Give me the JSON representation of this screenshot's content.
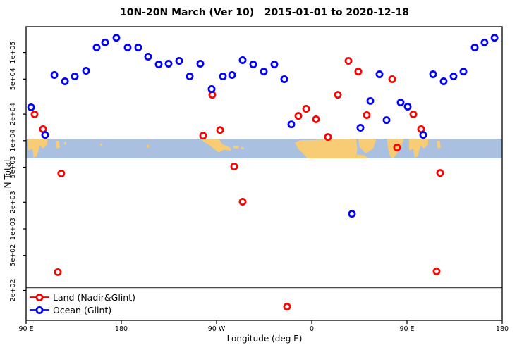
{
  "chart_data": {
    "type": "scatter",
    "title": "10N-20N March (Ver 10)   2015-01-01 to 2020-12-18",
    "xlabel": "Longitude (deg E)",
    "ylabel": "N Total",
    "yscale": "log",
    "ylim": [
      130,
      200000
    ],
    "x_axis_wrap_note": "x axis spans 450 deg starting at 90E: 90E,180,90W,0,90E,180",
    "x_ticks": [
      {
        "lon": 90,
        "label": "90 E"
      },
      {
        "lon": 180,
        "label": "180"
      },
      {
        "lon": 270,
        "label": "90 W"
      },
      {
        "lon": 360,
        "label": "0"
      },
      {
        "lon": 450,
        "label": "90 E"
      },
      {
        "lon": 540,
        "label": "180"
      }
    ],
    "y_ticks": [
      {
        "value": 200,
        "label": "2e+02"
      },
      {
        "value": 500,
        "label": "5e+02"
      },
      {
        "value": 1000,
        "label": "1e+03"
      },
      {
        "value": 2000,
        "label": "2e+03"
      },
      {
        "value": 5000,
        "label": "5e+03"
      },
      {
        "value": 10000,
        "label": "1e+04"
      },
      {
        "value": 20000,
        "label": "2e+04"
      },
      {
        "value": 50000,
        "label": "5e+04"
      },
      {
        "value": 100000,
        "label": "1e+05"
      }
    ],
    "series": [
      {
        "name": "Land (Nadir&Glint)",
        "color": "#ff0000",
        "marker": "open-circle",
        "points": [
          [
            98.0,
            19900
          ],
          [
            106.0,
            13500
          ],
          [
            123.3,
            4240
          ],
          [
            120.0,
            323
          ],
          [
            257.3,
            11400
          ],
          [
            266.0,
            33200
          ],
          [
            273.3,
            13200
          ],
          [
            286.7,
            5090
          ],
          [
            294.7,
            2030
          ],
          [
            336.7,
            131
          ],
          [
            347.3,
            19100
          ],
          [
            354.7,
            23000
          ],
          [
            364.0,
            17500
          ],
          [
            375.3,
            11000
          ],
          [
            384.7,
            33200
          ],
          [
            394.7,
            80300
          ],
          [
            404.0,
            60900
          ],
          [
            412.0,
            19500
          ],
          [
            436.0,
            49800
          ],
          [
            440.7,
            8360
          ],
          [
            456.0,
            19900
          ],
          [
            463.3,
            13500
          ],
          [
            478.0,
            329
          ],
          [
            481.3,
            4310
          ]
        ]
      },
      {
        "name": "Ocean (Glint)",
        "color": "#0000ff",
        "marker": "open-circle",
        "points": [
          [
            94.7,
            23900
          ],
          [
            108.0,
            11600
          ],
          [
            116.7,
            55600
          ],
          [
            126.7,
            47100
          ],
          [
            136.0,
            53600
          ],
          [
            146.7,
            62100
          ],
          [
            156.7,
            114000
          ],
          [
            164.7,
            130000
          ],
          [
            175.3,
            147000
          ],
          [
            186.0,
            114000
          ],
          [
            196.0,
            114000
          ],
          [
            205.3,
            89700
          ],
          [
            215.3,
            73300
          ],
          [
            224.7,
            74600
          ],
          [
            234.7,
            80300
          ],
          [
            244.7,
            53600
          ],
          [
            254.7,
            74600
          ],
          [
            265.3,
            38500
          ],
          [
            276.0,
            53600
          ],
          [
            284.7,
            55600
          ],
          [
            294.7,
            81800
          ],
          [
            304.7,
            73300
          ],
          [
            314.7,
            60900
          ],
          [
            324.7,
            73300
          ],
          [
            334.0,
            49800
          ],
          [
            340.7,
            15300
          ],
          [
            398.0,
            1480
          ],
          [
            406.0,
            14000
          ],
          [
            415.3,
            28200
          ],
          [
            424.0,
            56600
          ],
          [
            430.7,
            17100
          ],
          [
            444.0,
            27100
          ],
          [
            450.7,
            24300
          ],
          [
            465.3,
            11600
          ],
          [
            474.7,
            56600
          ],
          [
            484.7,
            47100
          ],
          [
            494.0,
            53600
          ],
          [
            503.3,
            60900
          ],
          [
            514.0,
            114000
          ],
          [
            523.3,
            130000
          ],
          [
            532.7,
            147000
          ]
        ]
      }
    ],
    "threshold_line": {
      "n": 215,
      "color": "#4a4a4a"
    },
    "map_band": {
      "description": "world coastline strip for latitude band 10N-20N",
      "n_top": 10500,
      "n_bottom": 6300,
      "ocean_color": "#a9c0e0",
      "land_color": "#f8cc74",
      "land_polygons": [
        {
          "name": "indochina-west",
          "pts": [
            [
              92,
              0
            ],
            [
              110,
              0
            ],
            [
              110,
              0.3
            ],
            [
              106,
              0.5
            ],
            [
              103,
              0.35
            ],
            [
              100,
              0.9
            ],
            [
              97,
              0.95
            ],
            [
              96,
              0.5
            ],
            [
              92,
              0.6
            ]
          ]
        },
        {
          "name": "philippines-west",
          "pts": [
            [
              118,
              0.12
            ],
            [
              121,
              0.1
            ],
            [
              122,
              0.45
            ],
            [
              119,
              0.5
            ]
          ]
        },
        {
          "name": "pacific-speck",
          "pts": [
            [
              126,
              0.15
            ],
            [
              128,
              0.15
            ],
            [
              128,
              0.3
            ],
            [
              126,
              0.3
            ]
          ]
        },
        {
          "name": "speck-160",
          "pts": [
            [
              160,
              0.25
            ],
            [
              161.5,
              0.25
            ],
            [
              161.5,
              0.35
            ],
            [
              160,
              0.35
            ]
          ]
        },
        {
          "name": "hawaii",
          "pts": [
            [
              204,
              0.32
            ],
            [
              206,
              0.32
            ],
            [
              206,
              0.45
            ],
            [
              204,
              0.45
            ]
          ]
        },
        {
          "name": "mexico-central-america",
          "pts": [
            [
              257,
              0
            ],
            [
              272,
              0
            ],
            [
              276,
              0.3
            ],
            [
              283,
              0.45
            ],
            [
              284,
              0.62
            ],
            [
              277,
              0.55
            ],
            [
              272,
              0.7
            ],
            [
              266,
              0.45
            ],
            [
              261,
              0.25
            ],
            [
              257,
              0.12
            ]
          ]
        },
        {
          "name": "cuba-hispaniola",
          "pts": [
            [
              286,
              0.35
            ],
            [
              291,
              0.38
            ],
            [
              291,
              0.5
            ],
            [
              286,
              0.48
            ]
          ]
        },
        {
          "name": "puerto-rico",
          "pts": [
            [
              293,
              0.42
            ],
            [
              296,
              0.44
            ],
            [
              296,
              0.54
            ],
            [
              293,
              0.52
            ]
          ]
        },
        {
          "name": "africa-sahel",
          "pts": [
            [
              349,
              0.08
            ],
            [
              402,
              0
            ],
            [
              403,
              0.5
            ],
            [
              402,
              1
            ],
            [
              356,
              1
            ],
            [
              347,
              0.5
            ],
            [
              344,
              0.2
            ]
          ]
        },
        {
          "name": "arabia",
          "pts": [
            [
              404,
              0
            ],
            [
              421,
              0
            ],
            [
              418,
              0.5
            ],
            [
              411,
              0.75
            ],
            [
              405,
              0.4
            ]
          ]
        },
        {
          "name": "horn-of-africa",
          "pts": [
            [
              403,
              0.8
            ],
            [
              410,
              0.85
            ],
            [
              413,
              1
            ],
            [
              402,
              1
            ]
          ]
        },
        {
          "name": "india",
          "pts": [
            [
              431,
              0
            ],
            [
              447,
              0
            ],
            [
              445,
              0.35
            ],
            [
              440,
              0.8
            ],
            [
              437,
              1
            ],
            [
              434,
              0.9
            ],
            [
              432,
              0.45
            ]
          ]
        },
        {
          "name": "indochina-east",
          "pts": [
            [
              452,
              0
            ],
            [
              470,
              0
            ],
            [
              470,
              0.3
            ],
            [
              466,
              0.5
            ],
            [
              463,
              0.35
            ],
            [
              460,
              0.9
            ],
            [
              457,
              0.95
            ],
            [
              456,
              0.5
            ],
            [
              452,
              0.6
            ]
          ]
        },
        {
          "name": "philippines-east",
          "pts": [
            [
              478,
              0.12
            ],
            [
              481,
              0.1
            ],
            [
              482,
              0.45
            ],
            [
              479,
              0.5
            ]
          ]
        }
      ]
    }
  }
}
